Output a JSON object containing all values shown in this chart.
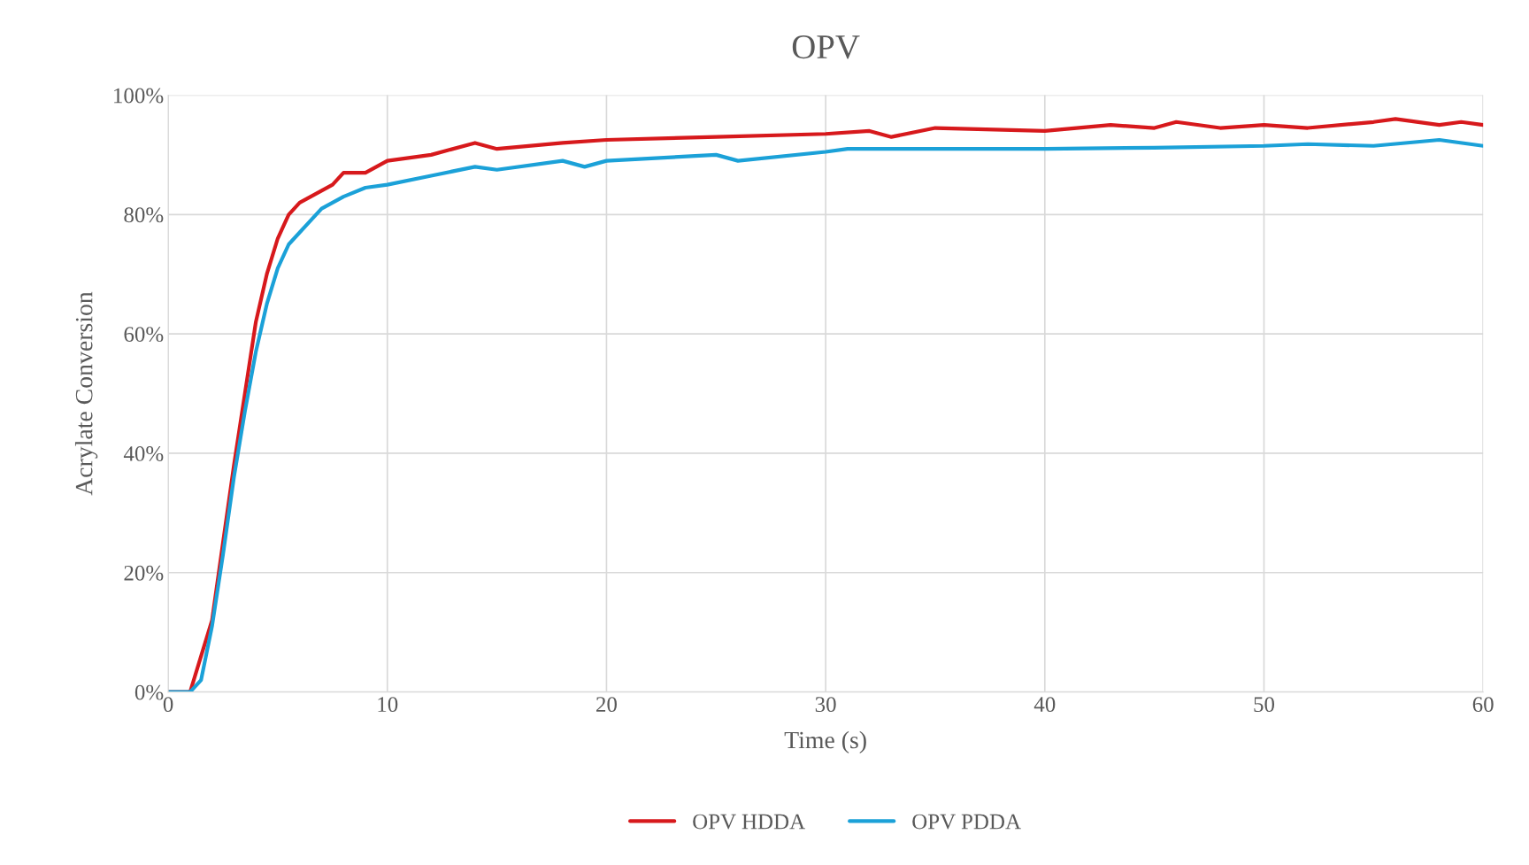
{
  "chart_data": {
    "type": "line",
    "title": "OPV",
    "xlabel": "Time (s)",
    "ylabel": "Acrylate Conversion",
    "xlim": [
      0,
      60
    ],
    "xticks": [
      0,
      10,
      20,
      30,
      40,
      50,
      60
    ],
    "ylim": [
      0,
      100
    ],
    "yticks": [
      {
        "value": 0,
        "label": "0%"
      },
      {
        "value": 20,
        "label": "20%"
      },
      {
        "value": 40,
        "label": "40%"
      },
      {
        "value": 60,
        "label": "60%"
      },
      {
        "value": 80,
        "label": "80%"
      },
      {
        "value": 100,
        "label": "100%"
      }
    ],
    "grid": true,
    "legend": "bottom",
    "line_style": "solid",
    "series": [
      {
        "name": "OPV HDDA",
        "color": "#d7191c",
        "x": [
          0,
          1,
          1.5,
          2,
          2.5,
          3,
          3.5,
          4,
          4.5,
          5,
          5.5,
          6,
          7,
          7.5,
          8,
          9,
          10,
          12,
          14,
          15,
          18,
          20,
          25,
          30,
          32,
          33,
          35,
          40,
          43,
          45,
          46,
          48,
          50,
          52,
          55,
          56,
          58,
          59,
          60
        ],
        "values": [
          0,
          0,
          null,
          12,
          25,
          38,
          50,
          62,
          70,
          76,
          80,
          82,
          84,
          85,
          87,
          87,
          89,
          90,
          92,
          91,
          92,
          92.5,
          93,
          93.5,
          94,
          93,
          94.5,
          94,
          95,
          94.5,
          95.5,
          94.5,
          95,
          94.5,
          95.5,
          96,
          95,
          95.5,
          95
        ]
      },
      {
        "name": "OPV PDDA",
        "color": "#1ba1d8",
        "x": [
          0,
          1,
          1.5,
          2,
          2.5,
          3,
          3.5,
          4,
          4.5,
          5,
          5.5,
          6,
          7,
          8,
          9,
          10,
          12,
          14,
          15,
          18,
          19,
          20,
          25,
          26,
          30,
          31,
          35,
          40,
          45,
          50,
          52,
          55,
          58,
          60
        ],
        "values": [
          0,
          0,
          2,
          11,
          23,
          36,
          47,
          57,
          65,
          71,
          75,
          77,
          81,
          83,
          84.5,
          85,
          86.5,
          88,
          87.5,
          89,
          88,
          89,
          90,
          89,
          90.5,
          91,
          91,
          91,
          91.2,
          91.5,
          91.8,
          91.5,
          92.5,
          91.5
        ]
      }
    ]
  }
}
